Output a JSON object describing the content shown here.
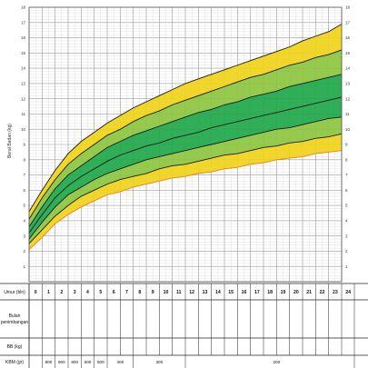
{
  "chart_data": {
    "type": "area",
    "ylabel": "Berat Badan (kg)",
    "ylim": [
      0,
      18
    ],
    "xlim": [
      0,
      24
    ],
    "y_ticks": [
      1,
      2,
      3,
      4,
      5,
      6,
      7,
      8,
      9,
      10,
      11,
      12,
      13,
      14,
      15,
      16,
      17,
      18
    ],
    "x": [
      0,
      1,
      2,
      3,
      4,
      5,
      6,
      7,
      8,
      9,
      10,
      11,
      12,
      13,
      14,
      15,
      16,
      17,
      18,
      19,
      20,
      21,
      22,
      23,
      24
    ],
    "grid": true,
    "bands": [
      {
        "color": "#f0d21a",
        "from": 0,
        "to": 1
      },
      {
        "color": "#8dc63f",
        "from": 1,
        "to": 2
      },
      {
        "color": "#1ea84a",
        "from": 2,
        "to": 4
      },
      {
        "color": "#8dc63f",
        "from": 4,
        "to": 5
      },
      {
        "color": "#f0d21a",
        "from": 5,
        "to": 6
      }
    ],
    "curve_colors": [
      "#e8811a",
      "#1a1a1a",
      "#1a1a1a",
      "#1a1a1a",
      "#1a1a1a",
      "#1a1a1a",
      "#1a1a1a"
    ],
    "series": [
      {
        "values": [
          2.1,
          2.9,
          3.8,
          4.4,
          4.9,
          5.3,
          5.7,
          5.9,
          6.2,
          6.4,
          6.6,
          6.8,
          6.9,
          7.1,
          7.2,
          7.4,
          7.5,
          7.7,
          7.8,
          8.0,
          8.1,
          8.2,
          8.4,
          8.5,
          8.6
        ]
      },
      {
        "values": [
          2.5,
          3.4,
          4.3,
          5.0,
          5.6,
          6.0,
          6.4,
          6.7,
          6.9,
          7.1,
          7.4,
          7.6,
          7.7,
          7.9,
          8.1,
          8.3,
          8.4,
          8.6,
          8.8,
          8.9,
          9.1,
          9.2,
          9.4,
          9.5,
          9.7
        ]
      },
      {
        "values": [
          2.8,
          3.9,
          4.9,
          5.7,
          6.2,
          6.7,
          7.1,
          7.4,
          7.7,
          8.0,
          8.2,
          8.4,
          8.6,
          8.8,
          9.0,
          9.2,
          9.4,
          9.6,
          9.8,
          10.0,
          10.1,
          10.3,
          10.5,
          10.7,
          10.8
        ]
      },
      {
        "values": [
          3.2,
          4.4,
          5.5,
          6.3,
          6.9,
          7.4,
          7.9,
          8.3,
          8.6,
          8.9,
          9.1,
          9.4,
          9.6,
          9.8,
          10.1,
          10.3,
          10.5,
          10.7,
          10.9,
          11.1,
          11.3,
          11.5,
          11.7,
          11.9,
          12.1
        ]
      },
      {
        "values": [
          3.6,
          4.9,
          6.1,
          7.0,
          7.6,
          8.2,
          8.8,
          9.2,
          9.6,
          9.9,
          10.2,
          10.5,
          10.8,
          11.1,
          11.3,
          11.6,
          11.8,
          12.1,
          12.3,
          12.5,
          12.8,
          13.0,
          13.2,
          13.4,
          13.6
        ]
      },
      {
        "values": [
          4.1,
          5.5,
          6.7,
          7.7,
          8.4,
          9.0,
          9.6,
          10.0,
          10.5,
          10.9,
          11.2,
          11.6,
          11.9,
          12.2,
          12.5,
          12.8,
          13.1,
          13.4,
          13.6,
          13.9,
          14.2,
          14.4,
          14.7,
          14.9,
          15.2
        ]
      },
      {
        "values": [
          4.6,
          6.0,
          7.3,
          8.4,
          9.2,
          9.8,
          10.4,
          10.9,
          11.4,
          11.8,
          12.2,
          12.6,
          13.0,
          13.3,
          13.6,
          13.9,
          14.2,
          14.5,
          14.8,
          15.1,
          15.4,
          15.8,
          16.1,
          16.4,
          16.9
        ]
      }
    ]
  },
  "table": {
    "age_label": "Umur (bln)",
    "months_label_line1": "Bulan",
    "months_label_line2": "penimbangan",
    "bb_label": "BB (kg)",
    "kbm_label": "KBM (gr)",
    "kbm_values": [
      {
        "text": "800",
        "col": 1
      },
      {
        "text": "900",
        "col": 2
      },
      {
        "text": "800",
        "col": 3
      },
      {
        "text": "600",
        "col": 4
      },
      {
        "text": "500",
        "col": 5
      },
      {
        "text": "400",
        "col": 6.5
      },
      {
        "text": "300",
        "col": 9.5
      },
      {
        "text": "200",
        "col": 18.5
      }
    ]
  }
}
